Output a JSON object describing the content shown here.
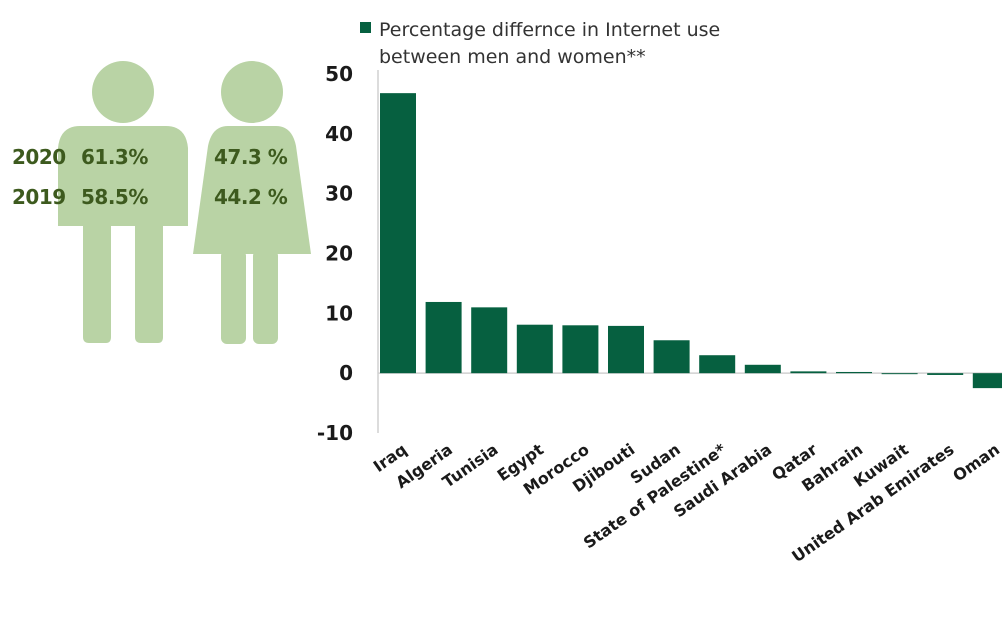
{
  "colors": {
    "bar": "#066040",
    "figure": "#b9d3a5",
    "stat_text": "#3d5a1e",
    "axis": "#d0d0d0"
  },
  "icons": {
    "man": "man-figure-icon",
    "woman": "woman-figure-icon"
  },
  "stats": {
    "rows": [
      {
        "year": "2020",
        "men": "61.3%",
        "women": "47.3 %"
      },
      {
        "year": "2019",
        "men": "58.5%",
        "women": "44.2 %"
      }
    ]
  },
  "chart_data": {
    "type": "bar",
    "legend": {
      "line1": "Percentage differnce in Internet use",
      "line2": "between men and women**",
      "position": "top"
    },
    "categories": [
      "Iraq",
      "Algeria",
      "Tunisia",
      "Egypt",
      "Morocco",
      "Djibouti",
      "Sudan",
      "State of Palestine*",
      "Saudi Arabia",
      "Qatar",
      "Bahrain",
      "Kuwait",
      "United Arab Emirates",
      "Oman"
    ],
    "series": [
      {
        "name": "Percentage differnce in Internet use between men and women**",
        "values": [
          46.8,
          11.9,
          11.0,
          8.1,
          8.0,
          7.9,
          5.5,
          3.0,
          1.4,
          0.3,
          0.2,
          0.0,
          -0.3,
          -2.5
        ]
      }
    ],
    "yticks": [
      "50",
      "40",
      "30",
      "20",
      "10",
      "0",
      "-10"
    ],
    "ylim": [
      -10,
      50
    ],
    "grid": false
  }
}
